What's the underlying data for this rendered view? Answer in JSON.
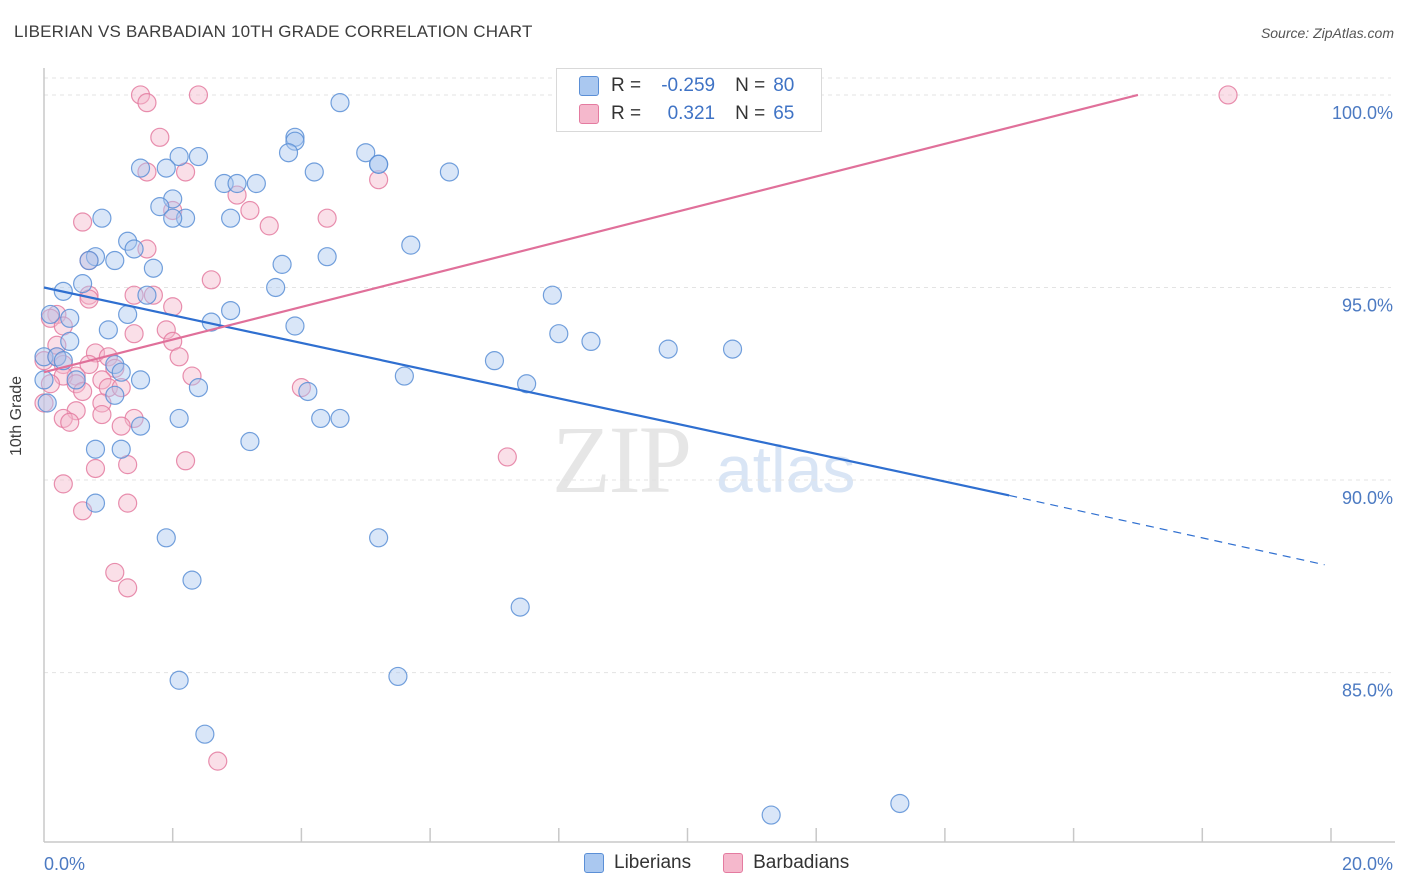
{
  "header": {
    "title": "LIBERIAN VS BARBADIAN 10TH GRADE CORRELATION CHART",
    "source": "Source: ZipAtlas.com"
  },
  "watermark": {
    "zip": "ZIP",
    "atlas": "atlas"
  },
  "legend": {
    "rows": [
      {
        "r_label": "R =",
        "r_value": "-0.259",
        "n_label": "N =",
        "n_value": "80"
      },
      {
        "r_label": "R =",
        "r_value": "0.321",
        "n_label": "N =",
        "n_value": "65"
      }
    ]
  },
  "bottom_legend": {
    "liberians": "Liberians",
    "barbadians": "Barbadians"
  },
  "colors": {
    "liberian_fill": "#aac8f0",
    "liberian_stroke": "#5b8fd6",
    "liberian_line": "#2f6fd0",
    "barbadian_fill": "#f5b8cc",
    "barbadian_stroke": "#e47ba0",
    "barbadian_line": "#e0709a",
    "grid": "#e3e3e3",
    "tick_text": "#4c7ac2"
  },
  "chart_data": {
    "type": "scatter",
    "title": "LIBERIAN VS BARBADIAN 10TH GRADE CORRELATION CHART",
    "xlabel": "",
    "ylabel": "10th Grade",
    "xlim": [
      0,
      20
    ],
    "ylim": [
      80.6,
      100.7
    ],
    "x_tick_labels": [
      "0.0%",
      "20.0%"
    ],
    "y_ticks": [
      85,
      90,
      95,
      100
    ],
    "y_tick_labels": [
      "85.0%",
      "90.0%",
      "95.0%",
      "100.0%"
    ],
    "grid": true,
    "legend_position": "top-center",
    "series": [
      {
        "name": "Liberians",
        "r": -0.259,
        "n": 80,
        "trend": {
          "x0": 0.0,
          "y0": 95.0,
          "x1": 15.0,
          "y1": 89.6,
          "dash_to_x": 19.9,
          "dash_to_y": 87.8
        },
        "points": [
          [
            4.6,
            99.8
          ],
          [
            3.9,
            98.9
          ],
          [
            3.9,
            98.8
          ],
          [
            5.0,
            98.5
          ],
          [
            3.8,
            98.5
          ],
          [
            2.1,
            98.4
          ],
          [
            2.4,
            98.4
          ],
          [
            5.2,
            98.2
          ],
          [
            5.2,
            98.2
          ],
          [
            1.5,
            98.1
          ],
          [
            1.9,
            98.1
          ],
          [
            4.2,
            98.0
          ],
          [
            6.3,
            98.0
          ],
          [
            2.8,
            97.7
          ],
          [
            3.0,
            97.7
          ],
          [
            3.3,
            97.7
          ],
          [
            2.0,
            97.3
          ],
          [
            1.8,
            97.1
          ],
          [
            2.9,
            96.8
          ],
          [
            2.2,
            96.8
          ],
          [
            2.0,
            96.8
          ],
          [
            0.9,
            96.8
          ],
          [
            1.3,
            96.2
          ],
          [
            1.4,
            96.0
          ],
          [
            5.7,
            96.1
          ],
          [
            1.1,
            95.7
          ],
          [
            4.4,
            95.8
          ],
          [
            0.8,
            95.8
          ],
          [
            0.7,
            95.7
          ],
          [
            3.7,
            95.6
          ],
          [
            1.7,
            95.5
          ],
          [
            0.6,
            95.1
          ],
          [
            3.6,
            95.0
          ],
          [
            0.3,
            94.9
          ],
          [
            1.6,
            94.8
          ],
          [
            7.9,
            94.8
          ],
          [
            2.9,
            94.4
          ],
          [
            1.3,
            94.3
          ],
          [
            0.1,
            94.3
          ],
          [
            0.4,
            94.2
          ],
          [
            2.6,
            94.1
          ],
          [
            3.9,
            94.0
          ],
          [
            1.0,
            93.9
          ],
          [
            8.0,
            93.8
          ],
          [
            8.5,
            93.6
          ],
          [
            0.4,
            93.6
          ],
          [
            9.7,
            93.4
          ],
          [
            10.7,
            93.4
          ],
          [
            7.0,
            93.1
          ],
          [
            0.0,
            93.2
          ],
          [
            0.2,
            93.2
          ],
          [
            0.3,
            93.1
          ],
          [
            1.1,
            93.0
          ],
          [
            1.2,
            92.8
          ],
          [
            0.5,
            92.6
          ],
          [
            1.5,
            92.6
          ],
          [
            5.6,
            92.7
          ],
          [
            7.5,
            92.5
          ],
          [
            2.4,
            92.4
          ],
          [
            1.1,
            92.2
          ],
          [
            4.1,
            92.3
          ],
          [
            2.1,
            91.6
          ],
          [
            4.3,
            91.6
          ],
          [
            4.6,
            91.6
          ],
          [
            1.5,
            91.4
          ],
          [
            3.2,
            91.0
          ],
          [
            0.8,
            90.8
          ],
          [
            1.2,
            90.8
          ],
          [
            0.8,
            89.4
          ],
          [
            1.9,
            88.5
          ],
          [
            5.2,
            88.5
          ],
          [
            2.3,
            87.4
          ],
          [
            7.4,
            86.7
          ],
          [
            5.5,
            84.9
          ],
          [
            2.1,
            84.8
          ],
          [
            2.5,
            83.4
          ],
          [
            11.3,
            81.3
          ],
          [
            13.3,
            81.6
          ],
          [
            0.05,
            92.0
          ],
          [
            0.0,
            92.6
          ]
        ]
      },
      {
        "name": "Barbadians",
        "r": 0.321,
        "n": 65,
        "trend": {
          "x0": 0.0,
          "y0": 92.8,
          "x1": 17.0,
          "y1": 100.0
        },
        "points": [
          [
            1.5,
            100.0
          ],
          [
            2.4,
            100.0
          ],
          [
            18.4,
            100.0
          ],
          [
            1.6,
            99.8
          ],
          [
            1.8,
            98.9
          ],
          [
            1.6,
            98.0
          ],
          [
            2.2,
            98.0
          ],
          [
            5.2,
            97.8
          ],
          [
            3.0,
            97.4
          ],
          [
            2.0,
            97.0
          ],
          [
            3.2,
            97.0
          ],
          [
            4.4,
            96.8
          ],
          [
            0.6,
            96.7
          ],
          [
            3.5,
            96.6
          ],
          [
            1.6,
            96.0
          ],
          [
            0.7,
            95.7
          ],
          [
            2.6,
            95.2
          ],
          [
            0.7,
            94.8
          ],
          [
            1.4,
            94.8
          ],
          [
            1.7,
            94.8
          ],
          [
            0.7,
            94.7
          ],
          [
            2.0,
            94.5
          ],
          [
            0.2,
            94.3
          ],
          [
            0.1,
            94.2
          ],
          [
            0.3,
            94.0
          ],
          [
            1.9,
            93.9
          ],
          [
            1.4,
            93.8
          ],
          [
            2.0,
            93.6
          ],
          [
            0.8,
            93.3
          ],
          [
            1.0,
            93.2
          ],
          [
            2.1,
            93.2
          ],
          [
            0.0,
            93.1
          ],
          [
            0.2,
            93.2
          ],
          [
            0.3,
            93.0
          ],
          [
            0.7,
            93.0
          ],
          [
            1.1,
            92.9
          ],
          [
            0.5,
            92.7
          ],
          [
            0.3,
            92.7
          ],
          [
            0.9,
            92.6
          ],
          [
            2.3,
            92.7
          ],
          [
            0.5,
            92.5
          ],
          [
            1.0,
            92.4
          ],
          [
            1.2,
            92.4
          ],
          [
            4.0,
            92.4
          ],
          [
            0.6,
            92.3
          ],
          [
            0.9,
            92.0
          ],
          [
            0.0,
            92.0
          ],
          [
            0.5,
            91.8
          ],
          [
            0.9,
            91.7
          ],
          [
            1.4,
            91.6
          ],
          [
            0.3,
            91.6
          ],
          [
            0.4,
            91.5
          ],
          [
            1.2,
            91.4
          ],
          [
            2.2,
            90.5
          ],
          [
            7.2,
            90.6
          ],
          [
            1.3,
            90.4
          ],
          [
            0.8,
            90.3
          ],
          [
            0.3,
            89.9
          ],
          [
            1.3,
            89.4
          ],
          [
            0.6,
            89.2
          ],
          [
            1.1,
            87.6
          ],
          [
            1.3,
            87.2
          ],
          [
            2.7,
            82.7
          ],
          [
            0.1,
            92.5
          ],
          [
            0.2,
            93.5
          ]
        ]
      }
    ]
  }
}
